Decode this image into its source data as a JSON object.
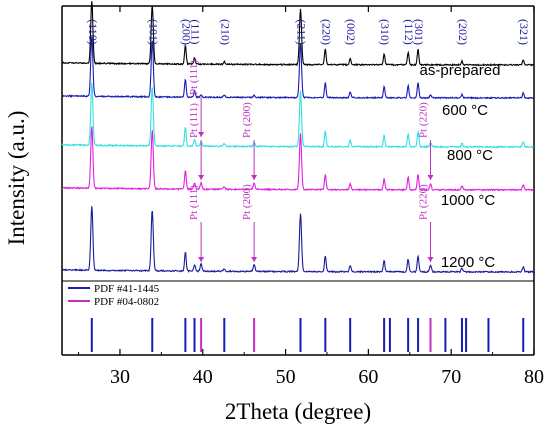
{
  "chart_data": {
    "type": "line",
    "xlabel": "2Theta (degree)",
    "ylabel": "Intensity (a.u.)",
    "xlim": [
      23,
      80
    ],
    "x_ticks": [
      30,
      40,
      50,
      60,
      70,
      80
    ],
    "y_ticks_shown": false,
    "series": [
      {
        "name": "as-prepared",
        "label": "as-prepared",
        "color": "#000000"
      },
      {
        "name": "600 °C",
        "label": "600 °C",
        "color": "#1a1ab4"
      },
      {
        "name": "800 °C",
        "label": "800 °C",
        "color": "#33e0e0"
      },
      {
        "name": "1000 °C",
        "label": "1000 °C",
        "color": "#e020e0"
      },
      {
        "name": "1200 °C",
        "label": "1200 °C",
        "color": "#1a1a9c"
      }
    ],
    "peaks": [
      {
        "x": 26.6,
        "hkl": "(110)",
        "h": 1.0
      },
      {
        "x": 33.9,
        "hkl": "(101)",
        "h": 0.95
      },
      {
        "x": 37.9,
        "hkl": "(200)",
        "h": 0.3
      },
      {
        "x": 39.0,
        "hkl": "(111)",
        "h": 0.1
      },
      {
        "x": 42.6,
        "hkl": "(210)",
        "h": 0.04
      },
      {
        "x": 51.8,
        "hkl": "(211)",
        "h": 0.9
      },
      {
        "x": 54.8,
        "hkl": "(220)",
        "h": 0.25
      },
      {
        "x": 57.8,
        "hkl": "(002)",
        "h": 0.1
      },
      {
        "x": 61.9,
        "hkl": "(310)",
        "h": 0.18
      },
      {
        "x": 64.8,
        "hkl": "(112)",
        "h": 0.2
      },
      {
        "x": 66.0,
        "hkl": "(301)",
        "h": 0.25
      },
      {
        "x": 71.3,
        "hkl": "(202)",
        "h": 0.06
      },
      {
        "x": 78.7,
        "hkl": "(321)",
        "h": 0.08
      }
    ],
    "pt_peaks": [
      {
        "x": 39.8,
        "hkl": "Pt (111)"
      },
      {
        "x": 46.2,
        "hkl": "Pt (200)"
      },
      {
        "x": 67.5,
        "hkl": "Pt (220)"
      }
    ],
    "annotations": [
      {
        "text": "Pt (111)",
        "x": 39.8,
        "series": "800 °C"
      },
      {
        "text": "Pt (111)",
        "x": 39.8,
        "series": "1000 °C"
      },
      {
        "text": "Pt (200)",
        "x": 46.2,
        "series": "1000 °C"
      },
      {
        "text": "Pt (220)",
        "x": 67.5,
        "series": "1000 °C"
      },
      {
        "text": "Pt (111)",
        "x": 39.8,
        "series": "1200 °C"
      },
      {
        "text": "Pt (200)",
        "x": 46.2,
        "series": "1200 °C"
      },
      {
        "text": "Pt (220)",
        "x": 67.5,
        "series": "1200 °C"
      }
    ],
    "legend": [
      {
        "label": "PDF #41-1445",
        "color": "#1a1ab4"
      },
      {
        "label": "PDF #04-0802",
        "color": "#c030c0"
      }
    ],
    "reference_lines": [
      {
        "pdf": "PDF #41-1445",
        "color": "#1a1ab4",
        "x": [
          26.6,
          33.9,
          37.9,
          39.0,
          42.6,
          51.8,
          54.8,
          57.8,
          61.9,
          62.6,
          64.8,
          66.0,
          69.3,
          71.3,
          71.8,
          74.5,
          78.7
        ]
      },
      {
        "pdf": "PDF #04-0802",
        "color": "#c030c0",
        "x": [
          39.8,
          46.2,
          67.5
        ]
      }
    ]
  }
}
